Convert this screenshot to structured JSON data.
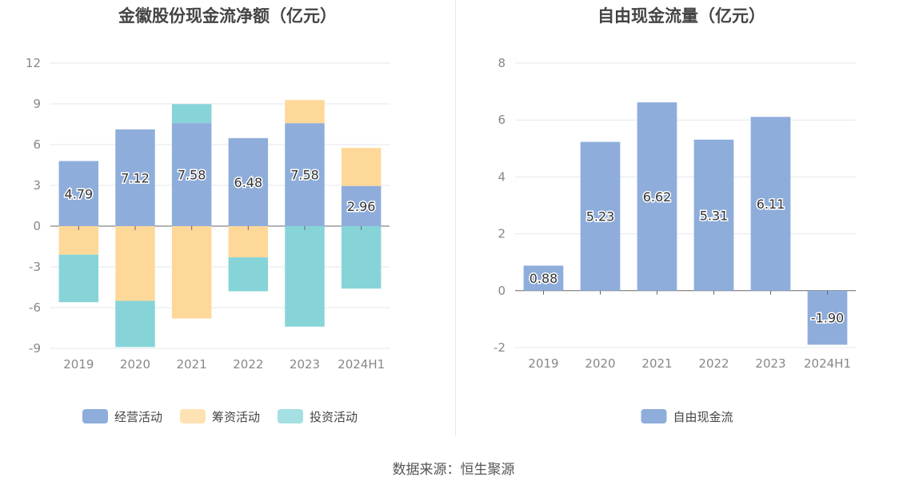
{
  "source_text": "数据来源：恒生聚源",
  "chart_data": [
    {
      "type": "bar",
      "stacked": true,
      "title": "金徽股份现金流净额（亿元）",
      "categories": [
        "2019",
        "2020",
        "2021",
        "2022",
        "2023",
        "2024H1"
      ],
      "series": [
        {
          "name": "经营活动",
          "color": "#8eaddb",
          "values": [
            4.79,
            7.12,
            7.58,
            6.48,
            7.58,
            2.96
          ],
          "labels": [
            "4.79",
            "7.12",
            "7.58",
            "6.48",
            "7.58",
            "2.96"
          ]
        },
        {
          "name": "筹资活动",
          "color": "#fed899",
          "values": [
            -2.1,
            -5.5,
            -6.8,
            -2.3,
            1.7,
            2.8
          ]
        },
        {
          "name": "投资活动",
          "color": "#86d4d8",
          "values": [
            -3.5,
            -3.4,
            1.4,
            -2.5,
            -7.4,
            -4.6
          ]
        }
      ],
      "ylim": [
        -9,
        12
      ],
      "yticks": [
        "12",
        "9",
        "6",
        "3",
        "0",
        "-3",
        "-6",
        "-9"
      ],
      "grid": true,
      "legend": "bottom"
    },
    {
      "type": "bar",
      "title": "自由现金流量（亿元）",
      "categories": [
        "2019",
        "2020",
        "2021",
        "2022",
        "2023",
        "2024H1"
      ],
      "series": [
        {
          "name": "自由现金流",
          "color": "#8eaddb",
          "values": [
            0.88,
            5.23,
            6.62,
            5.31,
            6.11,
            -1.9
          ],
          "labels": [
            "0.88",
            "5.23",
            "6.62",
            "5.31",
            "6.11",
            "-1.90"
          ]
        }
      ],
      "ylim": [
        -2,
        8
      ],
      "yticks": [
        "8",
        "6",
        "4",
        "2",
        "0",
        "-2"
      ],
      "grid": true,
      "legend": "bottom"
    }
  ]
}
